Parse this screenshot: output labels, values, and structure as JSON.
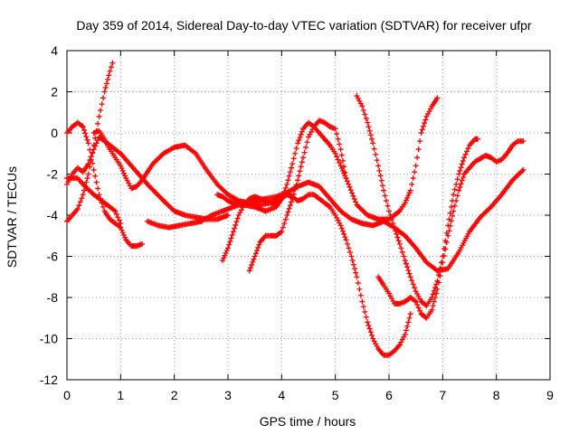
{
  "chart_data": {
    "type": "scatter",
    "title": "Day 359 of 2014, Sidereal Day-to-day VTEC variation (SDTVAR) for receiver ufpr",
    "xlabel": "GPS time / hours",
    "ylabel": "SDTVAR / TECUs",
    "xlim": [
      0,
      9
    ],
    "ylim": [
      -12,
      4
    ],
    "xticks": [
      "0",
      "1",
      "2",
      "3",
      "4",
      "5",
      "6",
      "7",
      "8",
      "9"
    ],
    "yticks": [
      "4",
      "2",
      "0",
      "-2",
      "-4",
      "-6",
      "-8",
      "-10",
      "-12"
    ],
    "grid": true,
    "marker": "+",
    "color": "#ff0000",
    "series": [
      {
        "x": [
          0.0,
          0.1,
          0.2,
          0.3,
          0.4,
          0.5,
          0.6,
          0.7,
          0.8,
          0.85
        ],
        "y": [
          -4.3,
          -4.0,
          -3.7,
          -3.0,
          -2.0,
          -0.6,
          0.8,
          2.0,
          3.0,
          3.4
        ]
      },
      {
        "x": [
          0.0,
          0.1,
          0.2,
          0.3,
          0.4,
          0.5,
          0.6,
          0.7,
          0.8,
          0.9,
          1.0,
          1.2,
          1.5,
          1.8,
          2.0,
          2.2,
          2.4,
          2.6,
          2.8,
          3.0
        ],
        "y": [
          -2.5,
          -2.0,
          -1.7,
          -1.9,
          -1.5,
          -0.8,
          -0.2,
          -0.4,
          -0.6,
          -0.8,
          -1.0,
          -1.6,
          -2.5,
          -3.3,
          -3.8,
          -4.0,
          -4.1,
          -4.2,
          -4.2,
          -4.0
        ]
      },
      {
        "x": [
          0.0,
          0.1,
          0.2,
          0.3,
          0.4,
          0.5,
          0.6,
          0.7,
          0.8,
          0.9,
          1.0,
          1.1,
          1.2,
          1.3,
          1.4
        ],
        "y": [
          0.0,
          0.3,
          0.5,
          0.3,
          -0.5,
          -1.8,
          -3.0,
          -3.8,
          -4.2,
          -4.4,
          -4.6,
          -5.2,
          -5.5,
          -5.5,
          -5.4
        ]
      },
      {
        "x": [
          0.0,
          0.2,
          0.3,
          0.5,
          0.7,
          0.9,
          1.0
        ],
        "y": [
          -2.2,
          -2.2,
          -2.5,
          -3.0,
          -3.4,
          -3.8,
          -4.4
        ]
      },
      {
        "x": [
          0.5,
          0.6,
          0.7,
          0.8,
          0.9,
          1.0,
          1.1,
          1.2,
          1.3,
          1.4,
          1.5,
          1.6,
          1.8,
          2.0,
          2.2,
          2.4,
          2.6,
          2.8,
          3.0,
          3.2,
          3.4,
          3.6,
          3.8,
          4.0
        ],
        "y": [
          0.0,
          0.1,
          -0.3,
          -0.8,
          -1.2,
          -1.6,
          -2.2,
          -2.7,
          -2.6,
          -2.3,
          -1.9,
          -1.5,
          -1.0,
          -0.7,
          -0.6,
          -1.0,
          -1.8,
          -2.5,
          -3.0,
          -3.3,
          -3.4,
          -3.5,
          -3.4,
          -3.1
        ]
      },
      {
        "x": [
          1.5,
          1.7,
          1.9,
          2.1,
          2.3,
          2.5,
          2.7,
          2.9,
          3.1,
          3.3,
          3.5,
          3.7,
          3.9,
          4.1,
          4.3,
          4.5,
          4.7,
          4.9,
          5.1,
          5.3,
          5.5,
          5.7,
          5.9,
          6.1,
          6.3,
          6.5,
          6.7,
          6.9,
          7.1,
          7.3,
          7.5,
          7.7,
          7.9,
          8.1,
          8.3,
          8.5
        ],
        "y": [
          -4.3,
          -4.5,
          -4.6,
          -4.5,
          -4.4,
          -4.3,
          -4.0,
          -3.8,
          -3.6,
          -3.4,
          -3.3,
          -3.2,
          -3.1,
          -2.9,
          -2.6,
          -2.4,
          -2.6,
          -3.2,
          -3.8,
          -4.2,
          -4.4,
          -4.5,
          -4.3,
          -4.6,
          -5.0,
          -5.6,
          -6.3,
          -6.7,
          -6.6,
          -5.8,
          -4.8,
          -4.1,
          -3.6,
          -3.0,
          -2.3,
          -1.8
        ]
      },
      {
        "x": [
          2.9,
          3.0,
          3.1,
          3.2,
          3.3,
          3.4,
          3.5,
          3.6,
          3.7,
          3.8,
          3.9,
          4.0,
          4.1,
          4.2,
          4.3,
          4.4,
          4.5,
          4.6,
          4.7,
          4.8,
          4.9,
          5.0,
          5.1,
          5.2
        ],
        "y": [
          -6.2,
          -5.6,
          -4.8,
          -4.0,
          -3.5,
          -3.2,
          -3.1,
          -3.2,
          -3.3,
          -3.4,
          -3.5,
          -3.2,
          -2.5,
          -1.5,
          -0.5,
          0.2,
          0.5,
          0.3,
          0.0,
          -0.3,
          -0.6,
          -1.0,
          -1.6,
          -2.2
        ]
      },
      {
        "x": [
          3.4,
          3.5,
          3.6,
          3.7,
          3.8,
          3.9,
          4.0,
          4.1,
          4.2,
          4.3,
          4.4,
          4.5,
          4.6,
          4.7,
          4.8,
          4.9,
          5.0,
          5.1,
          5.2,
          5.4,
          5.6,
          5.8,
          6.0,
          6.1,
          6.2,
          6.3,
          6.4,
          6.5,
          6.6,
          6.7,
          6.8,
          6.9
        ],
        "y": [
          -6.7,
          -6.0,
          -5.3,
          -5.0,
          -5.0,
          -5.0,
          -4.8,
          -4.0,
          -3.2,
          -2.3,
          -1.2,
          -0.2,
          0.3,
          0.6,
          0.5,
          0.3,
          0.2,
          -0.8,
          -2.2,
          -3.5,
          -4.0,
          -4.2,
          -4.2,
          -4.0,
          -3.8,
          -3.4,
          -2.8,
          -1.6,
          0.0,
          0.8,
          1.3,
          1.7
        ]
      },
      {
        "x": [
          2.8,
          2.9,
          3.0,
          3.1,
          3.2,
          3.3,
          3.5,
          3.7,
          3.9,
          4.0,
          4.1,
          4.2,
          4.3,
          4.4,
          4.5,
          4.6,
          4.7,
          4.8,
          4.9,
          5.0,
          5.1,
          5.2,
          5.3,
          5.4,
          5.5,
          5.6,
          5.7,
          5.8,
          5.9,
          6.0,
          6.1,
          6.2,
          6.3,
          6.4
        ],
        "y": [
          -3.0,
          -3.1,
          -3.3,
          -3.4,
          -3.5,
          -3.5,
          -3.6,
          -3.8,
          -3.6,
          -3.2,
          -3.0,
          -3.1,
          -3.3,
          -3.2,
          -3.0,
          -3.0,
          -3.2,
          -3.4,
          -3.6,
          -4.0,
          -4.5,
          -5.2,
          -6.0,
          -7.0,
          -8.2,
          -9.2,
          -10.0,
          -10.5,
          -10.8,
          -10.8,
          -10.6,
          -10.3,
          -9.8,
          -8.8
        ]
      },
      {
        "x": [
          5.4,
          5.5,
          5.6,
          5.7,
          5.8,
          5.9,
          6.0,
          6.1,
          6.2,
          6.3,
          6.4,
          6.5,
          6.6,
          6.7,
          6.8,
          6.9,
          7.0,
          7.1,
          7.2,
          7.3,
          7.4,
          7.5,
          7.6,
          7.65
        ],
        "y": [
          1.8,
          1.3,
          0.5,
          -0.5,
          -1.6,
          -2.8,
          -3.8,
          -4.6,
          -5.4,
          -6.2,
          -7.0,
          -7.7,
          -8.2,
          -8.4,
          -8.0,
          -7.2,
          -6.0,
          -4.5,
          -3.0,
          -2.0,
          -1.2,
          -0.6,
          -0.3,
          -0.3
        ]
      },
      {
        "x": [
          5.8,
          5.9,
          6.0,
          6.1,
          6.2,
          6.3,
          6.4,
          6.5,
          6.6,
          6.7,
          6.8,
          6.9,
          7.0,
          7.1,
          7.2,
          7.3,
          7.4,
          7.6,
          7.8,
          7.9,
          8.0,
          8.1,
          8.2,
          8.3,
          8.4,
          8.5
        ],
        "y": [
          -7.0,
          -7.4,
          -7.8,
          -8.3,
          -8.3,
          -8.2,
          -8.0,
          -8.2,
          -8.8,
          -9.0,
          -8.6,
          -7.6,
          -6.3,
          -5.0,
          -3.8,
          -2.8,
          -2.0,
          -1.4,
          -1.1,
          -1.2,
          -1.4,
          -1.3,
          -1.0,
          -0.6,
          -0.4,
          -0.4
        ]
      }
    ]
  }
}
